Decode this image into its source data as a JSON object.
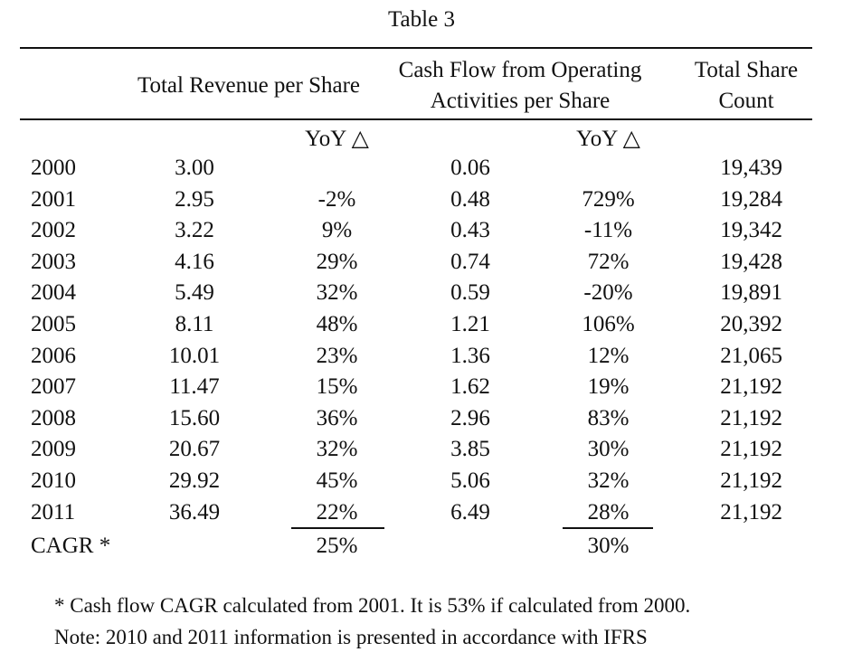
{
  "table": {
    "title": "Table 3",
    "headers": {
      "revenue": "Total Revenue per Share",
      "cashflow_line1": "Cash Flow from Operating",
      "cashflow_line2": "Activities per Share",
      "count_line1": "Total Share",
      "count_line2": "Count",
      "yoy_revenue": "YoY △",
      "yoy_cashflow": "YoY △"
    },
    "rows": [
      {
        "year": "2000",
        "revenue": "3.00",
        "revenue_yoy": "",
        "cashflow": "0.06",
        "cashflow_yoy": "",
        "share_count": "19,439"
      },
      {
        "year": "2001",
        "revenue": "2.95",
        "revenue_yoy": "-2%",
        "cashflow": "0.48",
        "cashflow_yoy": "729%",
        "share_count": "19,284"
      },
      {
        "year": "2002",
        "revenue": "3.22",
        "revenue_yoy": "9%",
        "cashflow": "0.43",
        "cashflow_yoy": "-11%",
        "share_count": "19,342"
      },
      {
        "year": "2003",
        "revenue": "4.16",
        "revenue_yoy": "29%",
        "cashflow": "0.74",
        "cashflow_yoy": "72%",
        "share_count": "19,428"
      },
      {
        "year": "2004",
        "revenue": "5.49",
        "revenue_yoy": "32%",
        "cashflow": "0.59",
        "cashflow_yoy": "-20%",
        "share_count": "19,891"
      },
      {
        "year": "2005",
        "revenue": "8.11",
        "revenue_yoy": "48%",
        "cashflow": "1.21",
        "cashflow_yoy": "106%",
        "share_count": "20,392"
      },
      {
        "year": "2006",
        "revenue": "10.01",
        "revenue_yoy": "23%",
        "cashflow": "1.36",
        "cashflow_yoy": "12%",
        "share_count": "21,065"
      },
      {
        "year": "2007",
        "revenue": "11.47",
        "revenue_yoy": "15%",
        "cashflow": "1.62",
        "cashflow_yoy": "19%",
        "share_count": "21,192"
      },
      {
        "year": "2008",
        "revenue": "15.60",
        "revenue_yoy": "36%",
        "cashflow": "2.96",
        "cashflow_yoy": "83%",
        "share_count": "21,192"
      },
      {
        "year": "2009",
        "revenue": "20.67",
        "revenue_yoy": "32%",
        "cashflow": "3.85",
        "cashflow_yoy": "30%",
        "share_count": "21,192"
      },
      {
        "year": "2010",
        "revenue": "29.92",
        "revenue_yoy": "45%",
        "cashflow": "5.06",
        "cashflow_yoy": "32%",
        "share_count": "21,192"
      },
      {
        "year": "2011",
        "revenue": "36.49",
        "revenue_yoy": "22%",
        "cashflow": "6.49",
        "cashflow_yoy": "28%",
        "share_count": "21,192"
      }
    ],
    "cagr": {
      "label": "CAGR *",
      "revenue": "25%",
      "cashflow": "30%"
    }
  },
  "notes": {
    "footnote": "* Cash flow CAGR calculated from 2001. It is 53% if calculated from 2000.",
    "ifrs": "Note: 2010 and 2011 information is presented in accordance with IFRS"
  }
}
